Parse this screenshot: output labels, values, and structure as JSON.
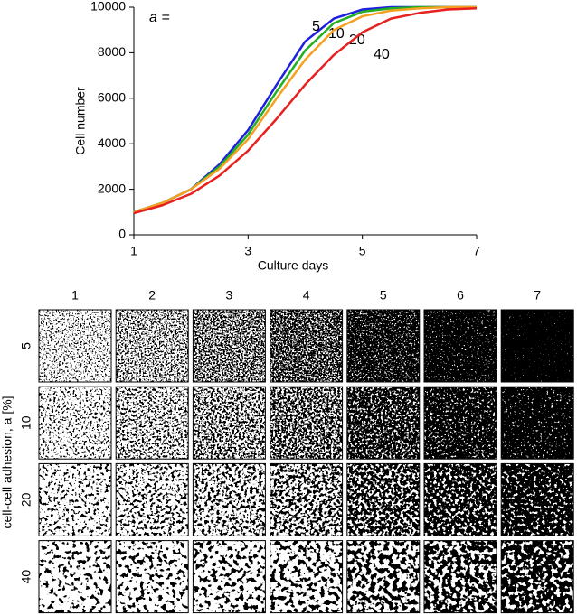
{
  "chart_data": {
    "type": "line",
    "xlabel": "Culture days",
    "ylabel": "Cell number",
    "annotation": "a =",
    "x": [
      1,
      1.5,
      2,
      2.5,
      3,
      3.5,
      4,
      4.5,
      5,
      5.5,
      6,
      6.5,
      7
    ],
    "series": [
      {
        "name": "5",
        "color": "#1f1fe0",
        "values": [
          1000,
          1400,
          2000,
          3100,
          4600,
          6600,
          8500,
          9500,
          9900,
          10000,
          10000,
          10000,
          10000
        ]
      },
      {
        "name": "10",
        "color": "#22b022",
        "values": [
          1000,
          1400,
          2000,
          3000,
          4400,
          6300,
          8100,
          9300,
          9800,
          9950,
          10000,
          10000,
          10000
        ]
      },
      {
        "name": "20",
        "color": "#f5a020",
        "values": [
          1000,
          1400,
          2000,
          2900,
          4200,
          6000,
          7700,
          9000,
          9600,
          9850,
          9950,
          10000,
          10000
        ]
      },
      {
        "name": "40",
        "color": "#e82020",
        "values": [
          950,
          1300,
          1800,
          2600,
          3700,
          5100,
          6600,
          7900,
          8900,
          9500,
          9750,
          9900,
          9950
        ]
      }
    ],
    "xlim": [
      1,
      7
    ],
    "xticks": [
      1,
      3,
      5,
      7
    ],
    "ylim": [
      0,
      10000
    ],
    "yticks": [
      0,
      2000,
      4000,
      6000,
      8000,
      10000
    ]
  },
  "panels": {
    "ylabel": "cell-cell adhesion, a [%]",
    "columns": [
      "1",
      "2",
      "3",
      "4",
      "5",
      "6",
      "7"
    ],
    "rows": [
      "5",
      "10",
      "20",
      "40"
    ]
  }
}
